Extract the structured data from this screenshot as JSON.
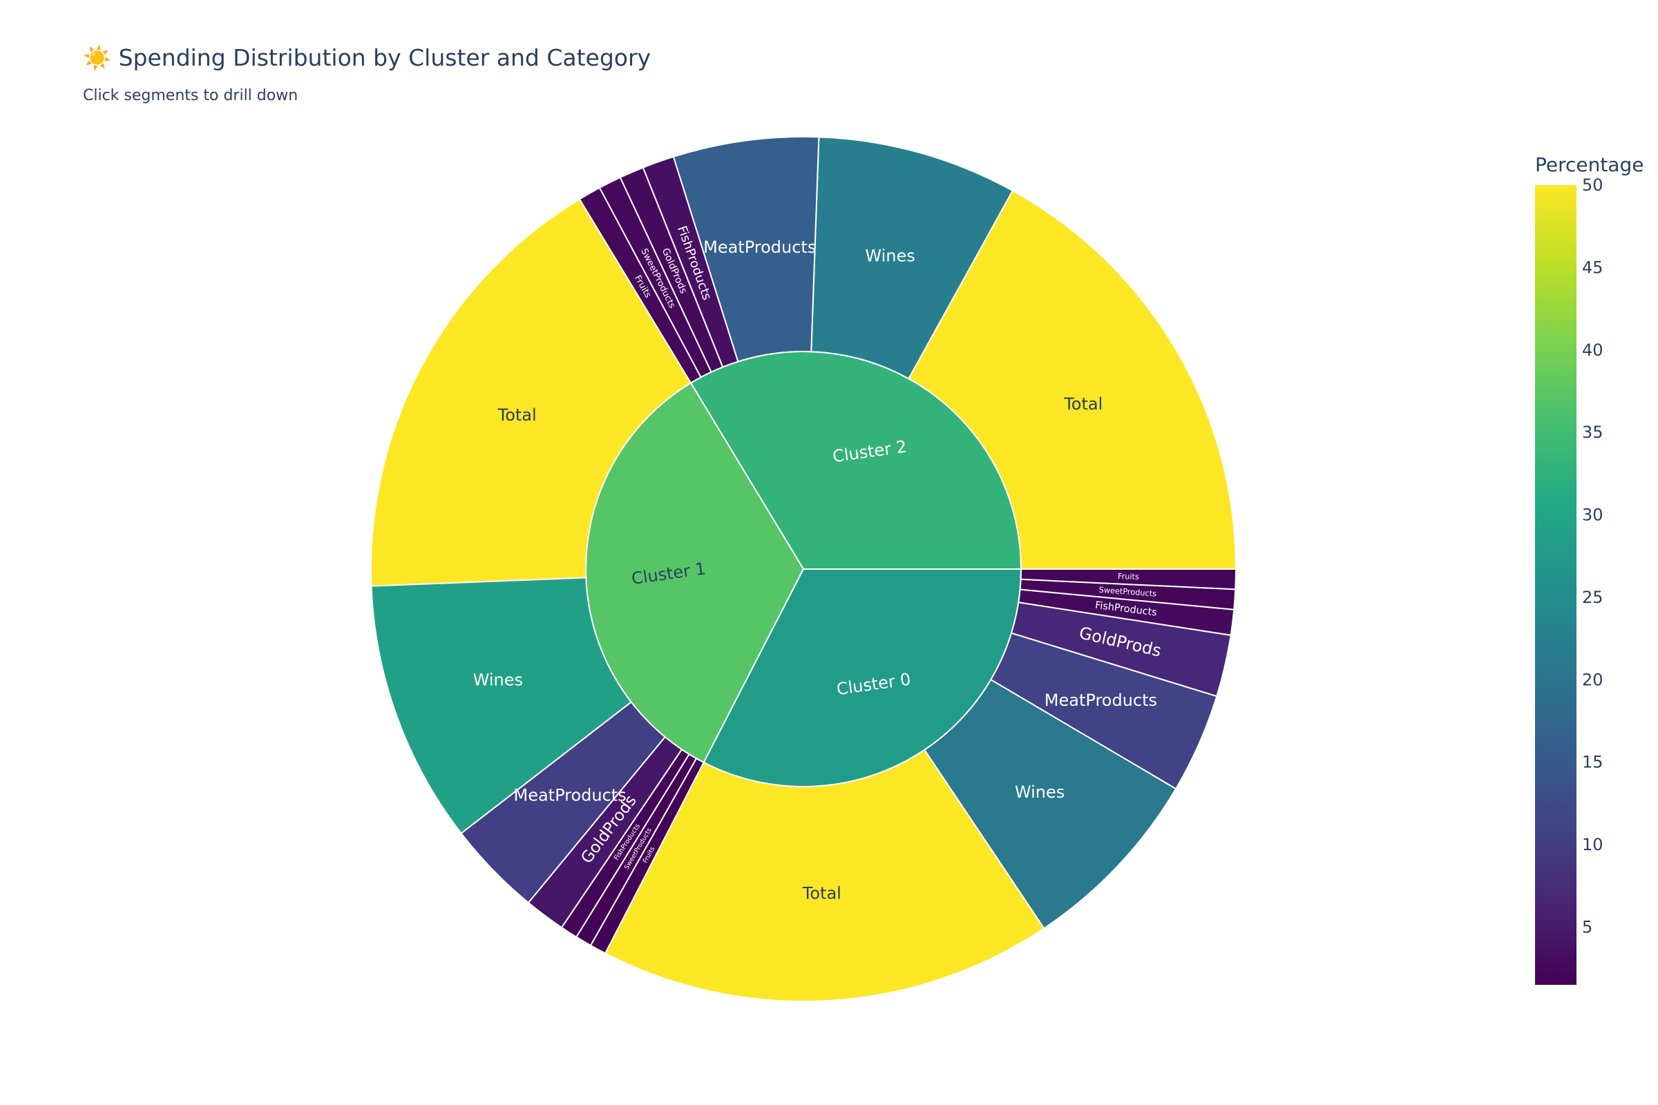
{
  "title": "☀️ Spending Distribution by Cluster and Category",
  "subtitle": "Click segments to drill down",
  "chart_data": {
    "type": "sunburst",
    "title": "☀️ Spending Distribution by Cluster and Category",
    "subtitle": "Click segments to drill down",
    "colorscale": "Viridis",
    "colorbar": {
      "title": "Percentage",
      "range": [
        1.5,
        50
      ],
      "ticks": [
        5,
        10,
        15,
        20,
        25,
        30,
        35,
        40,
        45,
        50
      ]
    },
    "clusters": [
      {
        "name": "Cluster 2",
        "percentage": 33,
        "children": [
          {
            "name": "Total",
            "value": 50,
            "color_value": 50
          },
          {
            "name": "Wines",
            "value": 22,
            "color_value": 22
          },
          {
            "name": "MeatProducts",
            "value": 16,
            "color_value": 16
          },
          {
            "name": "FishProducts",
            "value": 3.5,
            "color_value": 3.5
          },
          {
            "name": "GoldProds",
            "value": 2.7,
            "color_value": 2.7
          },
          {
            "name": "SweetProducts",
            "value": 2.5,
            "color_value": 2.5
          },
          {
            "name": "Fruits",
            "value": 2.5,
            "color_value": 2.5
          }
        ]
      },
      {
        "name": "Cluster 1",
        "percentage": 37,
        "children": [
          {
            "name": "Total",
            "value": 50,
            "color_value": 50
          },
          {
            "name": "Wines",
            "value": 29,
            "color_value": 29
          },
          {
            "name": "MeatProducts",
            "value": 10.5,
            "color_value": 10.5
          },
          {
            "name": "GoldProds",
            "value": 4.5,
            "color_value": 4.5
          },
          {
            "name": "FishProducts",
            "value": 1.9,
            "color_value": 1.9
          },
          {
            "name": "SweetProducts",
            "value": 1.8,
            "color_value": 1.8
          },
          {
            "name": "Fruits",
            "value": 1.8,
            "color_value": 1.8
          }
        ]
      },
      {
        "name": "Cluster 0",
        "percentage": 28,
        "children": [
          {
            "name": "Total",
            "value": 50,
            "color_value": 50
          },
          {
            "name": "Wines",
            "value": 21,
            "color_value": 21
          },
          {
            "name": "MeatProducts",
            "value": 11,
            "color_value": 11
          },
          {
            "name": "GoldProds",
            "value": 6.8,
            "color_value": 6.8
          },
          {
            "name": "FishProducts",
            "value": 2.8,
            "color_value": 2.8
          },
          {
            "name": "SweetProducts",
            "value": 2.2,
            "color_value": 2.2
          },
          {
            "name": "Fruits",
            "value": 2.2,
            "color_value": 2.2
          }
        ]
      }
    ]
  }
}
